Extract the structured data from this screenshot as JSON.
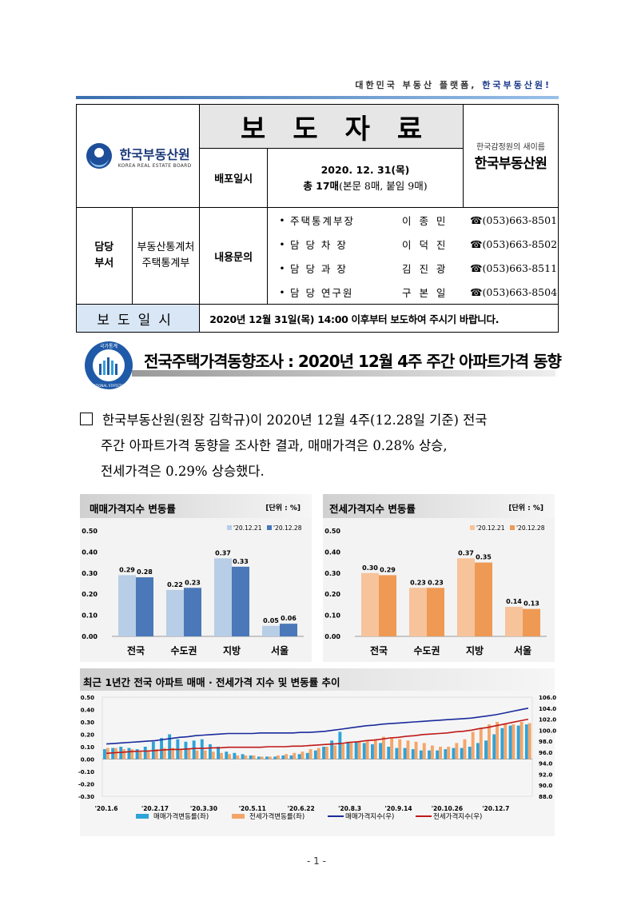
{
  "header": {
    "tagline_prefix": "대한민국 부동산 플랫폼,",
    "tagline_brand": "한국부동산원!",
    "logo_text": "한국부동산원",
    "logo_subtext": "KOREA REAL ESTATE BOARD",
    "title": "보도자료",
    "distribution_label": "배포일시",
    "distribution_date": "2020. 12. 31(목)",
    "page_count_bold": "총 17매",
    "page_count_detail": "(본문 8매, 붙임 9매)",
    "newname_small": "한국감정원의 새이름",
    "newname_big": "한국부동산원",
    "dept_label_1": "담당",
    "dept_label_2": "부서",
    "dept_name_1": "부동산통계처",
    "dept_name_2": "주택통계부",
    "inquiry_label": "내용문의",
    "contacts": [
      {
        "role": "주택통계부장",
        "name": "이 종 민",
        "tel": "☎(053)663-8501"
      },
      {
        "role": "담 당 차  장",
        "name": "이 덕 진",
        "tel": "☎(053)663-8502"
      },
      {
        "role": "담 당 과  장",
        "name": "김 진 광",
        "tel": "☎(053)663-8511"
      },
      {
        "role": "담 당 연구원",
        "name": "구 본 일",
        "tel": "☎(053)663-8504"
      }
    ],
    "release_label": "보도일시",
    "release_text": "2020년 12월 31일(목) 14:00 이후부터 보도하여 주시기 바랍니다."
  },
  "headline": "전국주택가격동향조사 : 2020년 12월 4주 주간 아파트가격 동향",
  "seal_text": "국가통계",
  "seal_subtext": "NATIONAL STATISTICS",
  "body": {
    "line1": "한국부동산원(원장 김학규)이 2020년 12월 4주(12.28일 기준) 전국",
    "line2": "주간 아파트가격 동향을 조사한 결과, 매매가격은 0.28% 상승,",
    "line3": "전세가격은 0.29% 상승했다."
  },
  "page_number": "- 1 -",
  "chart_data": [
    {
      "type": "bar",
      "title": "매매가격지수 변동률",
      "unit": "[단위 : %]",
      "categories": [
        "전국",
        "수도권",
        "지방",
        "서울"
      ],
      "series": [
        {
          "name": "'20.12.21",
          "values": [
            0.29,
            0.22,
            0.37,
            0.05
          ],
          "color": "#b8cde6"
        },
        {
          "name": "'20.12.28",
          "values": [
            0.28,
            0.23,
            0.33,
            0.06
          ],
          "color": "#4a78b8"
        }
      ],
      "ylim": [
        0.0,
        0.5
      ],
      "yticks": [
        "0.00",
        "0.10",
        "0.20",
        "0.30",
        "0.40",
        "0.50"
      ]
    },
    {
      "type": "bar",
      "title": "전세가격지수 변동률",
      "unit": "[단위 : %]",
      "categories": [
        "전국",
        "수도권",
        "지방",
        "서울"
      ],
      "series": [
        {
          "name": "'20.12.21",
          "values": [
            0.3,
            0.23,
            0.37,
            0.14
          ],
          "color": "#f7c39b"
        },
        {
          "name": "'20.12.28",
          "values": [
            0.29,
            0.23,
            0.35,
            0.13
          ],
          "color": "#ee9a55"
        }
      ],
      "ylim": [
        0.0,
        0.5
      ],
      "yticks": [
        "0.00",
        "0.10",
        "0.20",
        "0.30",
        "0.40",
        "0.50"
      ]
    },
    {
      "type": "bar",
      "title": "최근 1년간 전국 아파트 매매 · 전세가격 지수 및 변동률 추이",
      "x_ticks": [
        "'20.1.6",
        "'20.2.17",
        "'20.3.30",
        "'20.5.11",
        "'20.6.22",
        "'20.8.3",
        "'20.9.14",
        "'20.10.26",
        "'20.12.7"
      ],
      "ylim_left": [
        -0.3,
        0.5
      ],
      "yticks_left": [
        "0.50",
        "0.40",
        "0.30",
        "0.20",
        "0.10",
        "0.00",
        "-0.10",
        "-0.20",
        "-0.30"
      ],
      "ylim_right": [
        88.0,
        106.0
      ],
      "yticks_right": [
        "106.0",
        "104.0",
        "102.0",
        "100.0",
        "98.0",
        "96.0",
        "94.0",
        "92.0",
        "90.0",
        "88.0"
      ],
      "series": [
        {
          "name": "매매가격변동률(좌)",
          "type": "bar",
          "color": "#2ea3d9",
          "values": [
            0.08,
            0.09,
            0.1,
            0.09,
            0.08,
            0.1,
            0.14,
            0.17,
            0.2,
            0.16,
            0.14,
            0.15,
            0.16,
            0.12,
            0.1,
            0.06,
            0.05,
            0.04,
            0.03,
            0.02,
            0.02,
            0.02,
            0.03,
            0.03,
            0.04,
            0.05,
            0.07,
            0.1,
            0.15,
            0.22,
            0.14,
            0.14,
            0.13,
            0.12,
            0.13,
            0.1,
            0.09,
            0.09,
            0.08,
            0.07,
            0.07,
            0.07,
            0.08,
            0.09,
            0.09,
            0.1,
            0.13,
            0.15,
            0.2,
            0.25,
            0.27,
            0.27,
            0.28
          ]
        },
        {
          "name": "전세가격변동률(좌)",
          "type": "bar",
          "color": "#f4a66a",
          "values": [
            0.09,
            0.09,
            0.08,
            0.08,
            0.06,
            0.07,
            0.08,
            0.09,
            0.09,
            0.08,
            0.08,
            0.07,
            0.07,
            0.06,
            0.05,
            0.04,
            0.03,
            0.03,
            0.03,
            0.02,
            0.02,
            0.03,
            0.04,
            0.05,
            0.06,
            0.08,
            0.09,
            0.1,
            0.11,
            0.12,
            0.14,
            0.14,
            0.15,
            0.16,
            0.18,
            0.17,
            0.16,
            0.15,
            0.14,
            0.13,
            0.11,
            0.1,
            0.1,
            0.13,
            0.16,
            0.22,
            0.25,
            0.28,
            0.3,
            0.29,
            0.28,
            0.3,
            0.29
          ]
        },
        {
          "name": "매매가격지수(우)",
          "type": "line",
          "color": "#1a2a9c",
          "values": [
            97.5,
            97.6,
            97.7,
            97.8,
            97.9,
            98.0,
            98.1,
            98.3,
            98.5,
            98.7,
            98.8,
            99.0,
            99.1,
            99.2,
            99.3,
            99.4,
            99.4,
            99.4,
            99.4,
            99.5,
            99.5,
            99.5,
            99.5,
            99.5,
            99.6,
            99.6,
            99.7,
            99.8,
            100.0,
            100.2,
            100.4,
            100.6,
            100.8,
            100.9,
            101.1,
            101.2,
            101.3,
            101.4,
            101.5,
            101.6,
            101.7,
            101.8,
            101.9,
            102.0,
            102.1,
            102.2,
            102.4,
            102.6,
            102.8,
            103.1,
            103.4,
            103.7,
            104.0
          ]
        },
        {
          "name": "전세가격지수(우)",
          "type": "line",
          "color": "#c01818",
          "values": [
            95.8,
            95.9,
            96.0,
            96.1,
            96.2,
            96.2,
            96.3,
            96.4,
            96.5,
            96.5,
            96.6,
            96.7,
            96.7,
            96.8,
            96.8,
            96.9,
            96.9,
            96.9,
            96.9,
            96.9,
            97.0,
            97.0,
            97.0,
            97.1,
            97.1,
            97.2,
            97.3,
            97.4,
            97.5,
            97.6,
            97.8,
            97.9,
            98.1,
            98.2,
            98.4,
            98.6,
            98.7,
            98.9,
            99.0,
            99.2,
            99.3,
            99.4,
            99.5,
            99.7,
            99.8,
            100.0,
            100.3,
            100.5,
            100.8,
            101.1,
            101.4,
            101.7,
            102.0
          ]
        }
      ]
    }
  ]
}
